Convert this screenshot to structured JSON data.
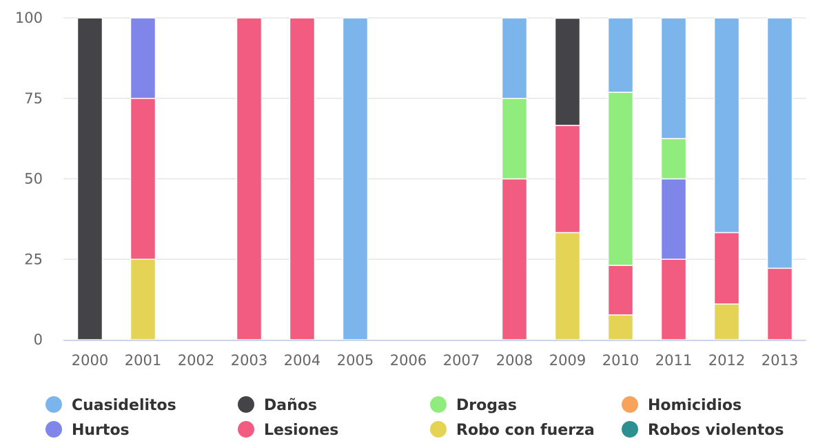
{
  "chart_data": {
    "type": "bar",
    "stacked": true,
    "title": "",
    "xlabel": "",
    "ylabel": "",
    "ylim": [
      0,
      100
    ],
    "yticks": [
      0,
      25,
      50,
      75,
      100
    ],
    "grid": true,
    "legend_position": "bottom",
    "categories": [
      "2000",
      "2001",
      "2002",
      "2003",
      "2004",
      "2005",
      "2006",
      "2007",
      "2008",
      "2009",
      "2010",
      "2011",
      "2012",
      "2013"
    ],
    "series": [
      {
        "name": "Cuasidelitos",
        "color": "#7cb5ec",
        "values": [
          0,
          0,
          0,
          0,
          0,
          100,
          0,
          0,
          25,
          0,
          23.1,
          37.5,
          66.7,
          77.8
        ]
      },
      {
        "name": "Daños",
        "color": "#434348",
        "values": [
          100,
          0,
          0,
          0,
          0,
          0,
          0,
          0,
          0,
          33.3,
          0,
          0,
          0,
          0
        ]
      },
      {
        "name": "Drogas",
        "color": "#90ed7d",
        "values": [
          0,
          0,
          0,
          0,
          0,
          0,
          0,
          0,
          25,
          0,
          53.8,
          12.5,
          0,
          0
        ]
      },
      {
        "name": "Homicidios",
        "color": "#f7a35c",
        "values": [
          0,
          0,
          0,
          0,
          0,
          0,
          0,
          0,
          0,
          0,
          0,
          0,
          0,
          0
        ]
      },
      {
        "name": "Hurtos",
        "color": "#8085e9",
        "values": [
          0,
          25,
          0,
          0,
          0,
          0,
          0,
          0,
          0,
          0,
          0,
          25,
          0,
          0
        ]
      },
      {
        "name": "Lesiones",
        "color": "#f15c80",
        "values": [
          0,
          50,
          0,
          100,
          100,
          0,
          0,
          0,
          50,
          33.3,
          15.4,
          25,
          22.2,
          22.2
        ]
      },
      {
        "name": "Robo con fuerza",
        "color": "#e4d354",
        "values": [
          0,
          25,
          0,
          0,
          0,
          0,
          0,
          0,
          0,
          33.3,
          7.7,
          0,
          11.1,
          0
        ]
      },
      {
        "name": "Robos violentos",
        "color": "#2b908f",
        "values": [
          0,
          0,
          0,
          0,
          0,
          0,
          0,
          0,
          0,
          0,
          0,
          0,
          0,
          0
        ]
      }
    ]
  }
}
